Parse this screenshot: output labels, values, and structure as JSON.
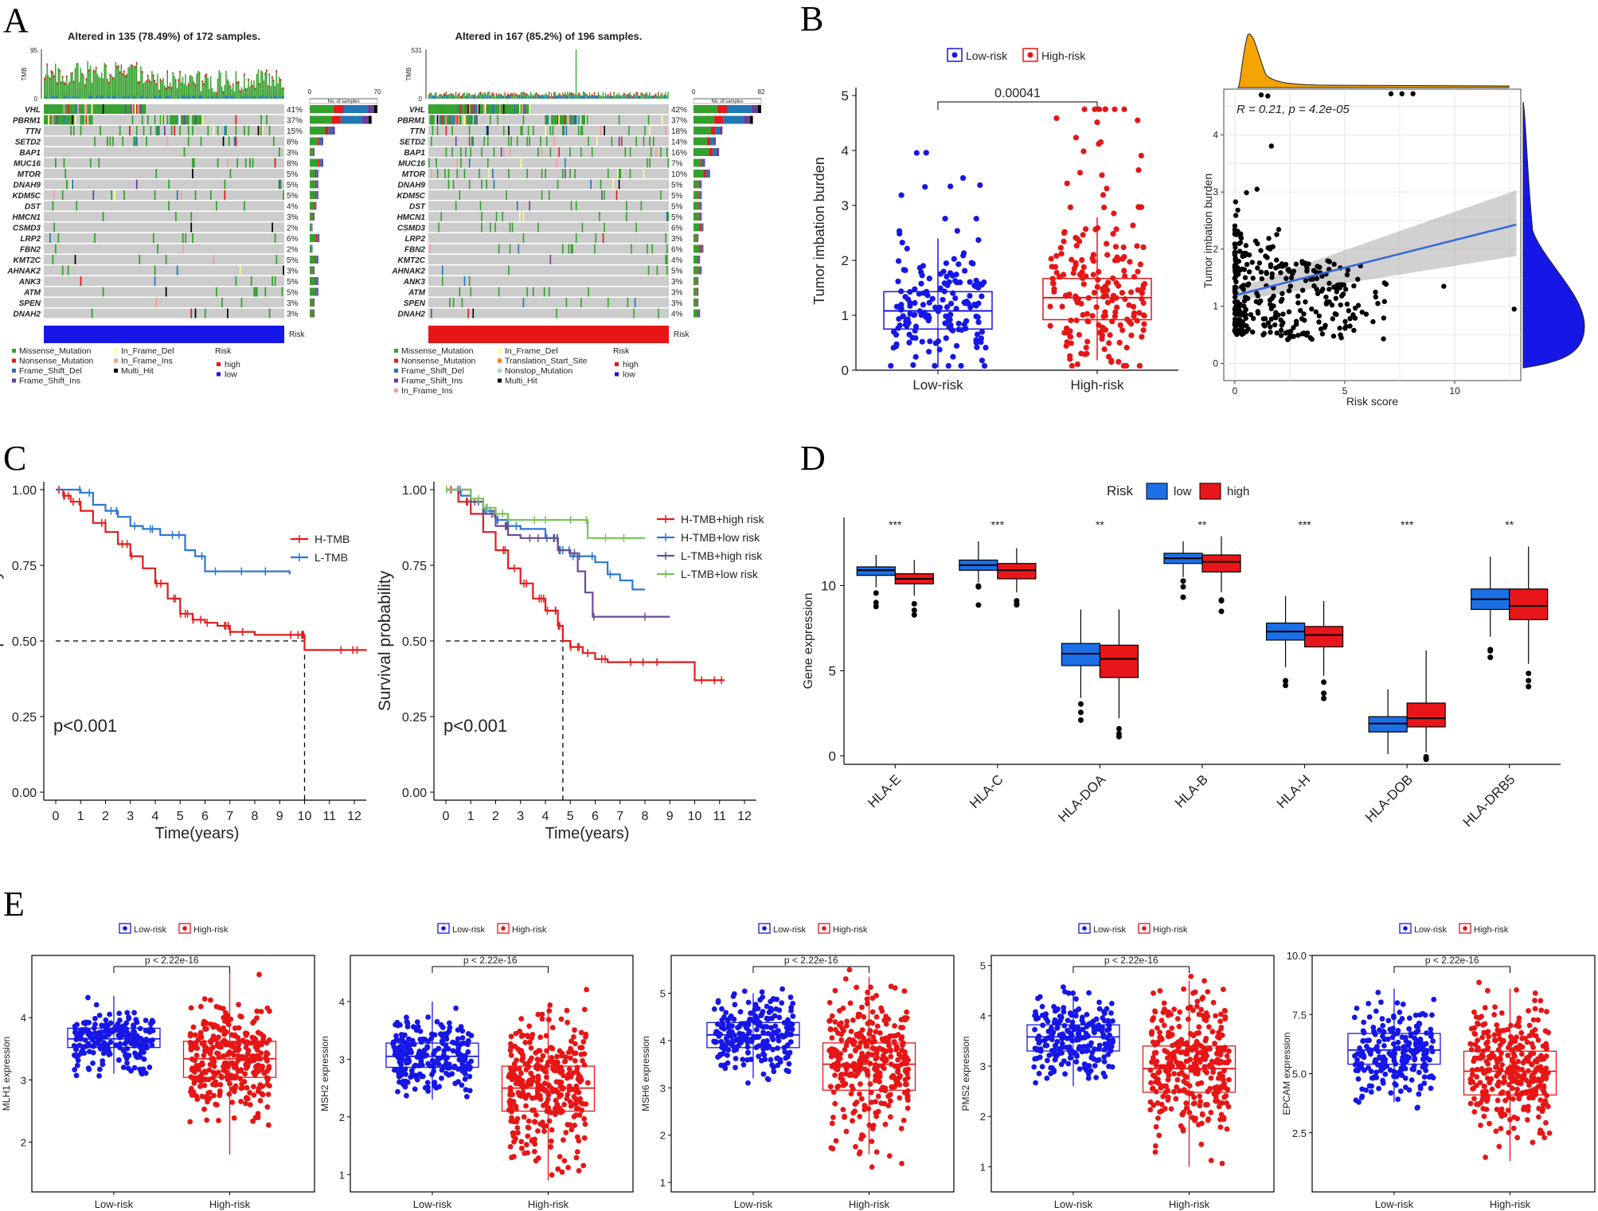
{
  "figure": {
    "panel_letters": [
      "A",
      "B",
      "C",
      "D",
      "E"
    ]
  },
  "colors": {
    "low": "#1616e6",
    "high": "#e61616",
    "missense": "#33a02c",
    "nonsense": "#e31a1c",
    "fs_del": "#1f78b4",
    "fs_ins": "#6a3d9a",
    "if_del": "#ffff99",
    "if_ins": "#fb9a99",
    "multi": "#000000",
    "tss": "#ff7f00",
    "nonstop": "#a6cee3",
    "grey": "#cccccc",
    "km_blue": "#2e77d0",
    "km_red": "#e31a1c",
    "km_purple": "#6a4c93",
    "km_green": "#78c257",
    "orange": "#f5a300",
    "fit": "#3366dd",
    "box_blue": "#1d6fe6",
    "box_red": "#e8161b"
  },
  "chart_data": [
    {
      "type": "oncoplot",
      "panel": "A",
      "group": "low",
      "title": "Altered in 135 (78.49%) of 172 samples.",
      "tmb_label": "TMB",
      "tmb_max": "95",
      "tmb_min": "0",
      "count_label": "No. of samples",
      "count_min": "0",
      "count_max": "70",
      "count_scale": 70,
      "genes": [
        "VHL",
        "PBRM1",
        "TTN",
        "SETD2",
        "BAP1",
        "MUC16",
        "MTOR",
        "DNAH9",
        "KDM5C",
        "DST",
        "HMCN1",
        "CSMD3",
        "LRP2",
        "FBN2",
        "KMT2C",
        "AHNAK2",
        "ANK3",
        "ATM",
        "SPEN",
        "DNAH2"
      ],
      "freqs": [
        "41%",
        "37%",
        "15%",
        "8%",
        "3%",
        "8%",
        "5%",
        "5%",
        "5%",
        "4%",
        "3%",
        "2%",
        "6%",
        "2%",
        "5%",
        "3%",
        "5%",
        "5%",
        "3%",
        "3%"
      ],
      "counts": [
        70,
        64,
        26,
        14,
        5,
        14,
        9,
        9,
        9,
        7,
        5,
        3,
        10,
        3,
        9,
        5,
        9,
        9,
        5,
        5
      ],
      "n_samples": 172,
      "risk_label": "Risk",
      "legend": [
        "Missense_Mutation",
        "Nonsense_Mutation",
        "Frame_Shift_Del",
        "Frame_Shift_Ins",
        "In_Frame_Del",
        "In_Frame_Ins",
        "Multi_Hit"
      ],
      "risk_legend": {
        "title": "Risk",
        "items": [
          "high",
          "low"
        ]
      }
    },
    {
      "type": "oncoplot",
      "panel": "A",
      "group": "high",
      "title": "Altered in 167 (85.2%) of 196 samples.",
      "tmb_label": "TMB",
      "tmb_max": "531",
      "tmb_min": "0",
      "count_label": "No. of samples",
      "count_min": "0",
      "count_max": "82",
      "count_scale": 82,
      "genes": [
        "VHL",
        "PBRM1",
        "TTN",
        "SETD2",
        "BAP1",
        "MUC16",
        "MTOR",
        "DNAH9",
        "KDM5C",
        "DST",
        "HMCN1",
        "CSMD3",
        "LRP2",
        "FBN2",
        "KMT2C",
        "AHNAK2",
        "ANK3",
        "ATM",
        "SPEN",
        "DNAH2"
      ],
      "freqs": [
        "42%",
        "37%",
        "18%",
        "14%",
        "16%",
        "7%",
        "10%",
        "5%",
        "5%",
        "5%",
        "5%",
        "6%",
        "3%",
        "6%",
        "4%",
        "5%",
        "3%",
        "3%",
        "3%",
        "4%"
      ],
      "counts": [
        82,
        72,
        35,
        27,
        31,
        14,
        20,
        10,
        10,
        10,
        10,
        12,
        6,
        12,
        8,
        10,
        6,
        6,
        6,
        8
      ],
      "n_samples": 196,
      "risk_label": "Risk",
      "legend": [
        "Missense_Mutation",
        "Nonsense_Mutation",
        "Frame_Shift_Del",
        "Frame_Shift_Ins",
        "In_Frame_Del",
        "Translation_Start_Site",
        "Nonstop_Mutation",
        "Multi_Hit",
        "In_Frame_Ins"
      ],
      "risk_legend": {
        "title": "Risk",
        "items": [
          "high",
          "low"
        ]
      }
    },
    {
      "type": "box",
      "panel": "B",
      "legend": [
        "Low-risk",
        "High-risk"
      ],
      "categories": [
        "Low-risk",
        "High-risk"
      ],
      "ylabel": "Tumor imbation burden",
      "ylim": [
        0,
        5
      ],
      "yticks": [
        "0",
        "1",
        "2",
        "3",
        "4",
        "5"
      ],
      "pvalue": "0.00041",
      "stats": [
        {
          "q1": 0.75,
          "median": 1.08,
          "q3": 1.43,
          "wlo": 0.05,
          "whi": 2.4
        },
        {
          "q1": 0.92,
          "median": 1.32,
          "q3": 1.67,
          "wlo": 0.18,
          "whi": 2.78
        }
      ]
    },
    {
      "type": "scatter",
      "panel": "B",
      "xlabel": "Risk score",
      "ylabel": "Tumor imbation burden",
      "xticks": [
        "0",
        "5",
        "10"
      ],
      "yticks": [
        "0",
        "1",
        "2",
        "3",
        "4"
      ],
      "xlim": [
        -0.5,
        13
      ],
      "ylim": [
        -0.3,
        4.8
      ],
      "annotation": "R = 0.21, p = 4.2e-05",
      "fit": {
        "x0": 0.1,
        "y0": 1.2,
        "x1": 12.8,
        "y1": 2.43
      }
    },
    {
      "type": "km",
      "panel": "C",
      "xlabel": "Time(years)",
      "ylabel": "Survival probability",
      "xticks": [
        "0",
        "1",
        "2",
        "3",
        "4",
        "5",
        "6",
        "7",
        "8",
        "9",
        "10",
        "11",
        "12"
      ],
      "yticks": [
        "0.00",
        "0.25",
        "0.50",
        "0.75",
        "1.00"
      ],
      "pvalue": "p<0.001",
      "median_time": 10,
      "series": [
        {
          "name": "H-TMB",
          "color": "#e31a1c",
          "points": [
            [
              0,
              1
            ],
            [
              0.3,
              0.98
            ],
            [
              0.6,
              0.96
            ],
            [
              1,
              0.93
            ],
            [
              1.5,
              0.89
            ],
            [
              2,
              0.86
            ],
            [
              2.5,
              0.82
            ],
            [
              3,
              0.78
            ],
            [
              3.5,
              0.74
            ],
            [
              4,
              0.69
            ],
            [
              4.5,
              0.64
            ],
            [
              5,
              0.59
            ],
            [
              5.5,
              0.57
            ],
            [
              6,
              0.56
            ],
            [
              6.5,
              0.55
            ],
            [
              7,
              0.53
            ],
            [
              8,
              0.52
            ],
            [
              9,
              0.52
            ],
            [
              9.9,
              0.52
            ],
            [
              10,
              0.47
            ],
            [
              12.5,
              0.47
            ]
          ]
        },
        {
          "name": "L-TMB",
          "color": "#2e77d0",
          "points": [
            [
              0,
              1
            ],
            [
              1,
              0.99
            ],
            [
              1.5,
              0.95
            ],
            [
              2,
              0.93
            ],
            [
              2.5,
              0.91
            ],
            [
              3,
              0.88
            ],
            [
              3.5,
              0.87
            ],
            [
              4.2,
              0.85
            ],
            [
              5,
              0.85
            ],
            [
              5.2,
              0.8
            ],
            [
              5.6,
              0.78
            ],
            [
              6,
              0.73
            ],
            [
              9,
              0.73
            ],
            [
              9.4,
              0.72
            ]
          ]
        }
      ]
    },
    {
      "type": "km",
      "panel": "C",
      "xlabel": "Time(years)",
      "ylabel": "Survival probability",
      "xticks": [
        "0",
        "1",
        "2",
        "3",
        "4",
        "5",
        "6",
        "7",
        "8",
        "9",
        "10",
        "11",
        "12"
      ],
      "yticks": [
        "0.00",
        "0.25",
        "0.50",
        "0.75",
        "1.00"
      ],
      "pvalue": "p<0.001",
      "median_time": 4.7,
      "series": [
        {
          "name": "H-TMB+high risk",
          "color": "#e31a1c",
          "points": [
            [
              0,
              1
            ],
            [
              0.5,
              0.96
            ],
            [
              1,
              0.92
            ],
            [
              1.5,
              0.86
            ],
            [
              2,
              0.8
            ],
            [
              2.5,
              0.74
            ],
            [
              3,
              0.69
            ],
            [
              3.5,
              0.64
            ],
            [
              4,
              0.6
            ],
            [
              4.5,
              0.55
            ],
            [
              4.7,
              0.5
            ],
            [
              5,
              0.48
            ],
            [
              5.5,
              0.46
            ],
            [
              6,
              0.44
            ],
            [
              6.5,
              0.43
            ],
            [
              8,
              0.43
            ],
            [
              10,
              0.42
            ],
            [
              10,
              0.37
            ],
            [
              11.2,
              0.37
            ]
          ]
        },
        {
          "name": "H-TMB+low risk",
          "color": "#2e77d0",
          "points": [
            [
              0,
              1
            ],
            [
              0.6,
              0.98
            ],
            [
              1,
              0.96
            ],
            [
              1.5,
              0.93
            ],
            [
              2,
              0.9
            ],
            [
              2.5,
              0.88
            ],
            [
              3,
              0.87
            ],
            [
              4,
              0.84
            ],
            [
              4.5,
              0.8
            ],
            [
              5,
              0.78
            ],
            [
              6,
              0.76
            ],
            [
              6.5,
              0.72
            ],
            [
              7,
              0.7
            ],
            [
              7.5,
              0.67
            ],
            [
              8,
              0.67
            ]
          ]
        },
        {
          "name": "L-TMB+high risk",
          "color": "#6a4c93",
          "points": [
            [
              0,
              1
            ],
            [
              1,
              0.96
            ],
            [
              1.5,
              0.92
            ],
            [
              2,
              0.88
            ],
            [
              2.5,
              0.85
            ],
            [
              3,
              0.84
            ],
            [
              4,
              0.84
            ],
            [
              4.5,
              0.8
            ],
            [
              5,
              0.79
            ],
            [
              5.3,
              0.73
            ],
            [
              5.6,
              0.66
            ],
            [
              5.9,
              0.58
            ],
            [
              9,
              0.58
            ]
          ]
        },
        {
          "name": "L-TMB+low risk",
          "color": "#78c257",
          "points": [
            [
              0,
              1
            ],
            [
              1,
              0.97
            ],
            [
              1.5,
              0.94
            ],
            [
              2,
              0.92
            ],
            [
              2.5,
              0.9
            ],
            [
              5,
              0.9
            ],
            [
              5.7,
              0.84
            ],
            [
              8,
              0.84
            ]
          ]
        }
      ]
    },
    {
      "type": "box",
      "panel": "D",
      "legend_title": "Risk",
      "legend": [
        "low",
        "high"
      ],
      "ylabel": "Gene expression",
      "ylim": [
        -0.5,
        14
      ],
      "yticks": [
        "0",
        "5",
        "10"
      ],
      "categories": [
        "HLA-E",
        "HLA-C",
        "HLA-DOA",
        "HLA-B",
        "HLA-H",
        "HLA-DOB",
        "HLA-DRB5"
      ],
      "significance": [
        "***",
        "***",
        "**",
        "**",
        "***",
        "***",
        "**"
      ],
      "series": [
        {
          "name": "low",
          "stats": [
            [
              10.6,
              10.9,
              11.1,
              9.9,
              11.8
            ],
            [
              10.9,
              11.2,
              11.5,
              10.2,
              12.6
            ],
            [
              5.3,
              6.0,
              6.6,
              3.4,
              8.6
            ],
            [
              11.3,
              11.6,
              11.9,
              10.5,
              12.6
            ],
            [
              6.8,
              7.3,
              7.8,
              5.2,
              9.4
            ],
            [
              1.4,
              1.9,
              2.3,
              0.1,
              3.9
            ],
            [
              8.6,
              9.2,
              9.8,
              7.0,
              11.7
            ]
          ]
        },
        {
          "name": "high",
          "stats": [
            [
              10.1,
              10.4,
              10.7,
              9.4,
              11.5
            ],
            [
              10.4,
              10.9,
              11.3,
              9.6,
              12.2
            ],
            [
              4.6,
              5.7,
              6.5,
              2.2,
              8.6
            ],
            [
              10.8,
              11.4,
              11.8,
              9.6,
              12.9
            ],
            [
              6.4,
              7.1,
              7.6,
              4.7,
              9.1
            ],
            [
              1.7,
              2.2,
              3.1,
              0.2,
              6.2
            ],
            [
              8.0,
              8.8,
              9.8,
              5.4,
              12.3
            ]
          ]
        }
      ]
    },
    {
      "type": "box",
      "panel": "E",
      "legend": [
        "Low-risk",
        "High-risk"
      ],
      "categories": [
        "Low-risk",
        "High-risk"
      ],
      "pvalue": "p < 2.22e-16",
      "panels": [
        {
          "ylabel": "MLH1 expression",
          "ylim": [
            1.2,
            5.0
          ],
          "yticks": [
            "2",
            "3",
            "4"
          ],
          "stats": [
            [
              3.52,
              3.66,
              3.83,
              3.1,
              4.35
            ],
            [
              3.04,
              3.34,
              3.62,
              1.8,
              4.75
            ]
          ]
        },
        {
          "ylabel": "MSH2 expression",
          "ylim": [
            0.7,
            4.8
          ],
          "yticks": [
            "1",
            "2",
            "3",
            "4"
          ],
          "stats": [
            [
              2.86,
              3.05,
              3.28,
              2.3,
              4.0
            ],
            [
              2.1,
              2.5,
              2.88,
              0.9,
              3.95
            ]
          ]
        },
        {
          "ylabel": "MSH6 expression",
          "ylim": [
            0.8,
            5.8
          ],
          "yticks": [
            "1",
            "2",
            "3",
            "4",
            "5"
          ],
          "stats": [
            [
              3.85,
              4.12,
              4.38,
              3.2,
              5.0
            ],
            [
              2.95,
              3.5,
              3.95,
              1.6,
              5.35
            ]
          ]
        },
        {
          "ylabel": "PMS2 expression",
          "ylim": [
            0.5,
            5.2
          ],
          "yticks": [
            "1",
            "2",
            "3",
            "4",
            "5"
          ],
          "stats": [
            [
              3.3,
              3.58,
              3.82,
              2.6,
              4.5
            ],
            [
              2.48,
              2.95,
              3.4,
              1.0,
              4.7
            ]
          ]
        },
        {
          "ylabel": "EPCAM expression",
          "ylim": [
            0,
            10
          ],
          "yticks": [
            "2.5",
            "5.0",
            "7.5",
            "10.0"
          ],
          "stats": [
            [
              5.4,
              6.0,
              6.7,
              3.8,
              8.6
            ],
            [
              4.1,
              5.1,
              5.95,
              1.3,
              8.6
            ]
          ]
        }
      ]
    }
  ]
}
